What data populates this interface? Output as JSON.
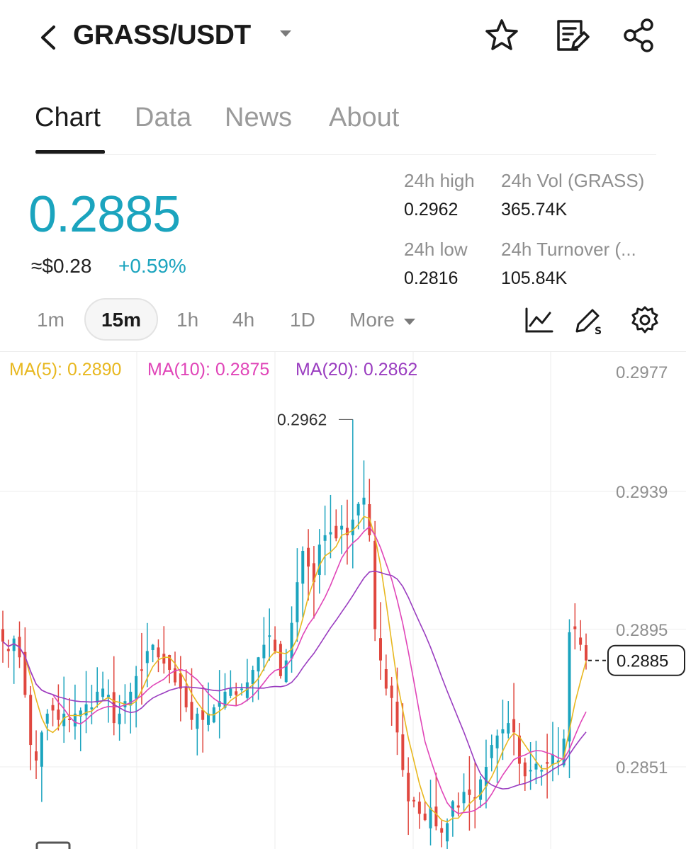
{
  "header": {
    "pair": "GRASS/USDT"
  },
  "icons": {
    "back": "back-chevron-icon",
    "dropdown": "caret-down-icon",
    "favorite": "star-icon",
    "notes": "edit-note-icon",
    "share": "share-icon",
    "indicators": "line-chart-icon",
    "draw": "pencil-draw-icon",
    "settings": "gear-icon"
  },
  "tabs": [
    {
      "label": "Chart",
      "active": true
    },
    {
      "label": "Data",
      "active": false
    },
    {
      "label": "News",
      "active": false
    },
    {
      "label": "About",
      "active": false
    }
  ],
  "ticker": {
    "last_price": "0.2885",
    "usd_value": "≈$0.28",
    "change": "+0.59%",
    "stats": {
      "high_label": "24h high",
      "high_value": "0.2962",
      "vol_label": "24h Vol (GRASS)",
      "vol_value": "365.74K",
      "low_label": "24h low",
      "low_value": "0.2816",
      "turnover_label": "24h Turnover (...",
      "turnover_value": "105.84K"
    }
  },
  "timeframes": {
    "options": [
      "1m",
      "15m",
      "1h",
      "4h",
      "1D"
    ],
    "selected": "15m",
    "more_label": "More"
  },
  "chart_data": {
    "type": "candlestick",
    "y_axis": {
      "ticks": [
        "0.2977",
        "0.2939",
        "0.2895",
        "0.2851"
      ],
      "range": [
        0.2826,
        0.2983
      ]
    },
    "legend": [
      {
        "label": "MA(5): 0.2890",
        "color": "#e8b820"
      },
      {
        "label": "MA(10): 0.2875",
        "color": "#e045b8"
      },
      {
        "label": "MA(20): 0.2862",
        "color": "#9a3dc0"
      }
    ],
    "annotation_high": "0.2962",
    "current_price_label": "0.2885",
    "colors": {
      "up": "#1ba4be",
      "down": "#e0473f",
      "grid": "#eeeeee"
    },
    "closes": [
      0.2891,
      0.2888,
      0.2892,
      0.2886,
      0.2874,
      0.2858,
      0.2853,
      0.2862,
      0.2868,
      0.2869,
      0.2866,
      0.2868,
      0.2866,
      0.2868,
      0.2869,
      0.2871,
      0.287,
      0.2875,
      0.2876,
      0.2874,
      0.2865,
      0.2868,
      0.2872,
      0.2875,
      0.288,
      0.2882,
      0.2888,
      0.289,
      0.2886,
      0.2884,
      0.2882,
      0.2878,
      0.2876,
      0.287,
      0.2866,
      0.2868,
      0.2866,
      0.2868,
      0.287,
      0.2872,
      0.2875,
      0.2876,
      0.2874,
      0.2876,
      0.2878,
      0.2882,
      0.2886,
      0.289,
      0.2893,
      0.2888,
      0.288,
      0.2885,
      0.2897,
      0.291,
      0.292,
      0.2915,
      0.291,
      0.2922,
      0.2925,
      0.2926,
      0.2924,
      0.2928,
      0.2925,
      0.293,
      0.2935,
      0.2937,
      0.2925,
      0.2895,
      0.2885,
      0.2876,
      0.2873,
      0.2862,
      0.285,
      0.284,
      0.284,
      0.2836,
      0.2834,
      0.2838,
      0.2832,
      0.283,
      0.2833,
      0.284,
      0.2838,
      0.2843,
      0.2842,
      0.2841,
      0.2847,
      0.2851,
      0.2858,
      0.2861,
      0.2863,
      0.2865,
      0.2862,
      0.2852,
      0.2848,
      0.285,
      0.2852,
      0.285,
      0.2852,
      0.2855,
      0.2853,
      0.286,
      0.2894,
      0.2895,
      0.289,
      0.2885
    ]
  }
}
